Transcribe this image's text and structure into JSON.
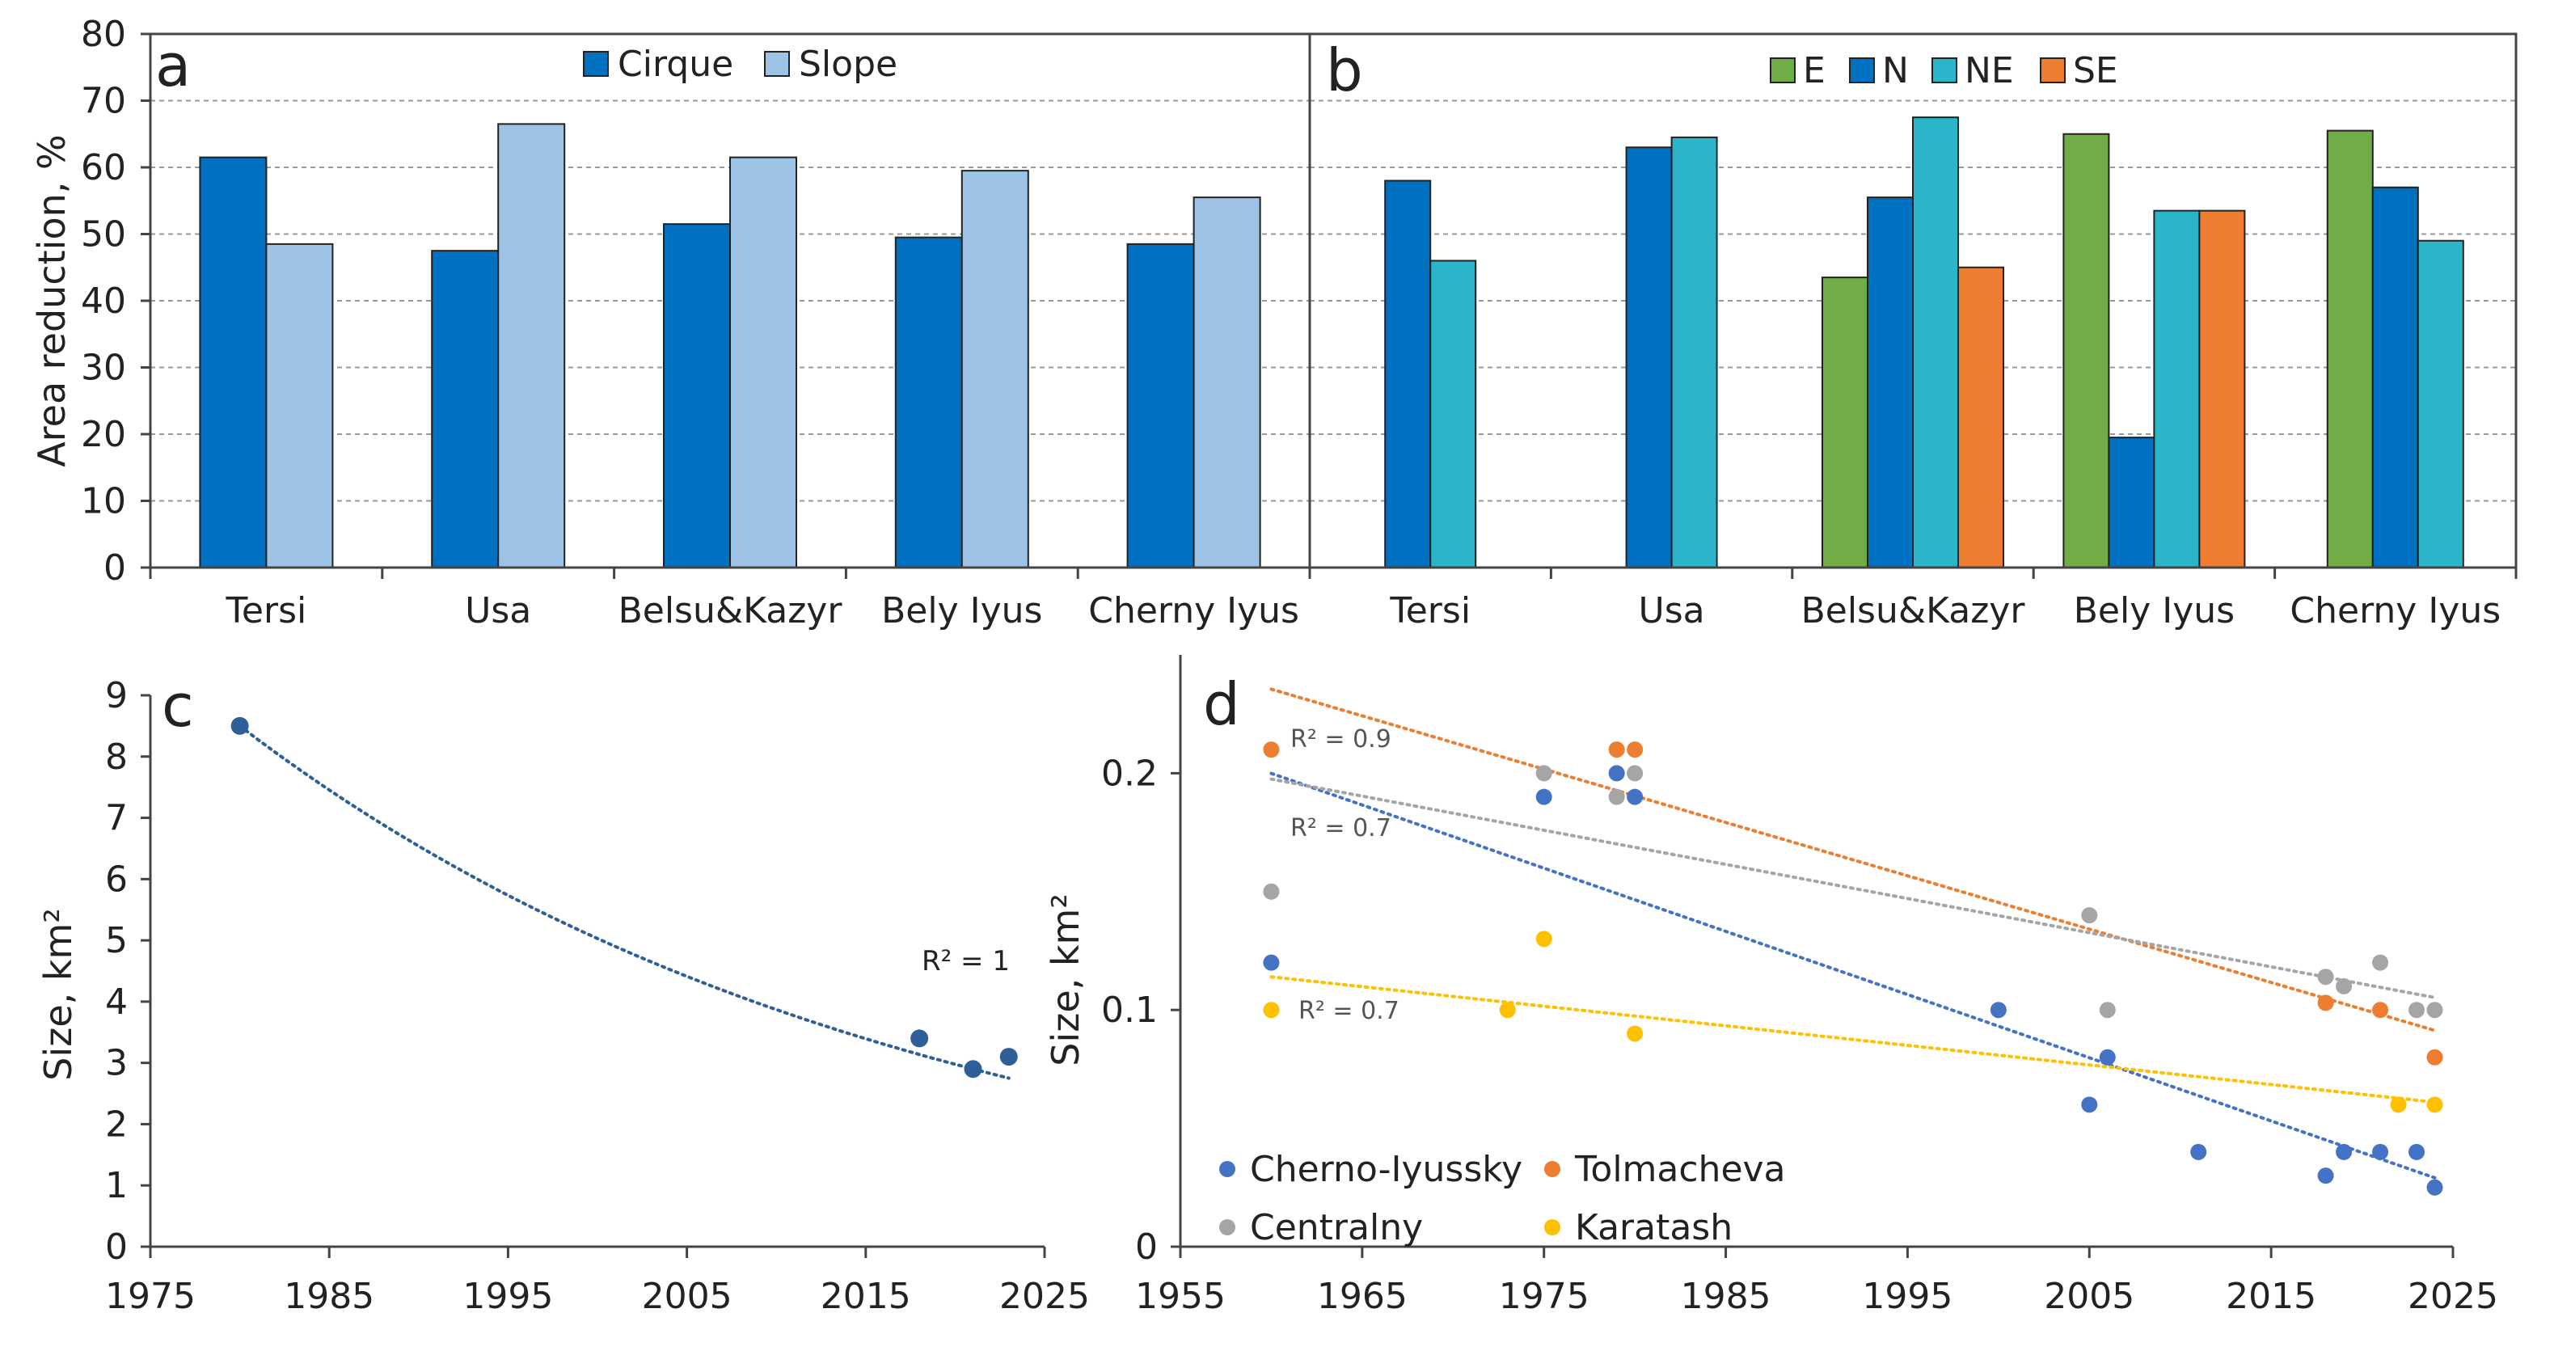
{
  "chart_data": [
    {
      "panel": "a",
      "type": "bar",
      "categories": [
        "Tersi",
        "Usa",
        "Belsu&Kazyr",
        "Bely Iyus",
        "Cherny Iyus"
      ],
      "series": [
        {
          "name": "Cirque",
          "values": [
            61.5,
            47.5,
            51.5,
            49.5,
            48.5
          ],
          "color": "#0070c0"
        },
        {
          "name": "Slope",
          "values": [
            48.5,
            66.5,
            61.5,
            59.5,
            55.5
          ],
          "color": "#9dc3e6"
        }
      ],
      "ylabel": "Area reduction, %",
      "ylim": [
        0,
        80
      ],
      "yticks": [
        "0",
        "10",
        "20",
        "30",
        "40",
        "50",
        "60",
        "70",
        "80"
      ],
      "grid": true,
      "legend": "top-center"
    },
    {
      "panel": "b",
      "type": "bar",
      "categories": [
        "Tersi",
        "Usa",
        "Belsu&Kazyr",
        "Bely Iyus",
        "Cherny Iyus"
      ],
      "series": [
        {
          "name": "E",
          "values": [
            null,
            null,
            43.5,
            65,
            65.5
          ],
          "color": "#70ad47"
        },
        {
          "name": "N",
          "values": [
            58,
            63,
            55.5,
            19.5,
            57
          ],
          "color": "#0070c0"
        },
        {
          "name": "NE",
          "values": [
            46,
            64.5,
            67.5,
            53.5,
            49
          ],
          "color": "#2bb5c8"
        },
        {
          "name": "SE",
          "values": [
            null,
            null,
            45,
            53.5,
            null
          ],
          "color": "#ed7d31"
        }
      ],
      "ylim": [
        0,
        80
      ],
      "grid": true,
      "legend": "top-right"
    },
    {
      "panel": "c",
      "type": "scatter",
      "series": [
        {
          "name": "",
          "x": [
            1980,
            2018,
            2021,
            2023
          ],
          "y": [
            8.5,
            3.4,
            2.9,
            3.1
          ],
          "color": "#2f5f98"
        }
      ],
      "trend_label": "R² = 1",
      "ylabel": "Size, km²",
      "xlim": [
        1975,
        2025
      ],
      "ylim": [
        0,
        9
      ],
      "xticks": [
        "1975",
        "1985",
        "1995",
        "2005",
        "2015",
        "2025"
      ],
      "yticks": [
        "0",
        "1",
        "2",
        "3",
        "4",
        "5",
        "6",
        "7",
        "8",
        "9"
      ]
    },
    {
      "panel": "d",
      "type": "scatter",
      "series": [
        {
          "name": "Cherno-Iyussky",
          "color": "#4472c4",
          "x": [
            1960,
            1975,
            1979,
            1980,
            2000,
            2005,
            2006,
            2011,
            2018,
            2019,
            2021,
            2023,
            2024
          ],
          "y": [
            0.12,
            0.19,
            0.2,
            0.19,
            0.1,
            0.06,
            0.08,
            0.04,
            0.03,
            0.04,
            0.04,
            0.04,
            0.025
          ]
        },
        {
          "name": "Tolmacheva",
          "color": "#ed7d31",
          "x": [
            1960,
            1979,
            1980,
            2018,
            2021,
            2024
          ],
          "y": [
            0.21,
            0.21,
            0.21,
            0.103,
            0.1,
            0.08
          ]
        },
        {
          "name": "Centralny",
          "color": "#a5a5a5",
          "x": [
            1960,
            1975,
            1979,
            1980,
            2005,
            2006,
            2018,
            2019,
            2021,
            2023,
            2024
          ],
          "y": [
            0.15,
            0.2,
            0.19,
            0.2,
            0.14,
            0.1,
            0.114,
            0.11,
            0.12,
            0.1,
            0.1
          ]
        },
        {
          "name": "Karatash",
          "color": "#ffc000",
          "x": [
            1960,
            1973,
            1975,
            1980,
            2022,
            2024
          ],
          "y": [
            0.1,
            0.1,
            0.13,
            0.09,
            0.06,
            0.06
          ]
        }
      ],
      "trend_labels": [
        "R² = 0.9",
        "R² = 0.7",
        "R² = 0.7"
      ],
      "ylabel": "Size, km²",
      "xlim": [
        1955,
        2025
      ],
      "ylim": [
        0,
        0.25
      ],
      "xticks": [
        "1955",
        "1965",
        "1975",
        "1985",
        "1995",
        "2005",
        "2015",
        "2025"
      ],
      "yticks": [
        "0",
        "0.1",
        "0.2"
      ],
      "legend": "bottom-left"
    }
  ]
}
